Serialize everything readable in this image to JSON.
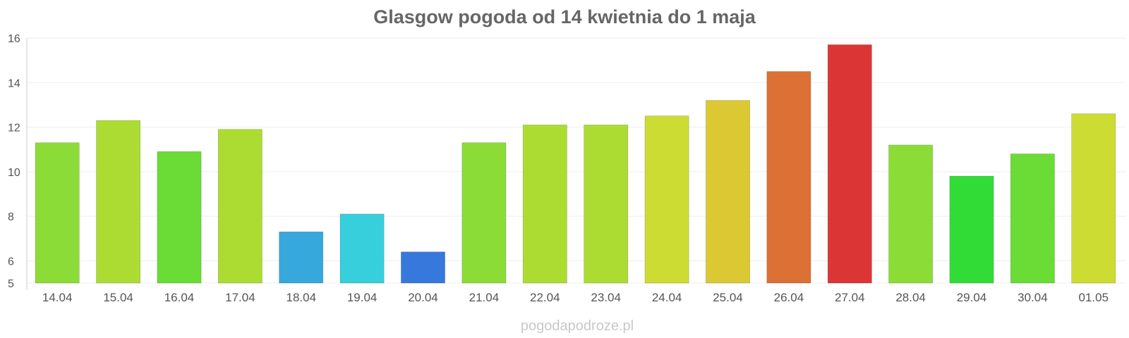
{
  "chart_data": {
    "type": "bar",
    "title": "Glasgow pogoda od 14 kwietnia do 1 maja",
    "categories": [
      "14.04",
      "15.04",
      "16.04",
      "17.04",
      "18.04",
      "19.04",
      "20.04",
      "21.04",
      "22.04",
      "23.04",
      "24.04",
      "25.04",
      "26.04",
      "27.04",
      "28.04",
      "29.04",
      "30.04",
      "01.05"
    ],
    "values": [
      11.3,
      12.3,
      10.9,
      11.9,
      7.3,
      8.1,
      6.4,
      11.3,
      12.1,
      12.1,
      12.5,
      13.2,
      14.5,
      15.7,
      11.2,
      9.8,
      10.8,
      12.6
    ],
    "colors": [
      "#8cdc37",
      "#acdc32",
      "#6adc35",
      "#acdc32",
      "#37a8dc",
      "#37cfdc",
      "#3778dc",
      "#8cdc37",
      "#acdc32",
      "#acdc32",
      "#cddc32",
      "#dcc832",
      "#dc7035",
      "#dc3535",
      "#8cdc37",
      "#32dc37",
      "#6adc35",
      "#cddc32"
    ],
    "yticks": [
      5,
      6,
      8,
      10,
      12,
      14,
      16
    ],
    "ylim": [
      5,
      16
    ],
    "xlabel": "",
    "ylabel": "",
    "grid": true,
    "legend": "none"
  },
  "watermark": "pogodapodroze.pl"
}
